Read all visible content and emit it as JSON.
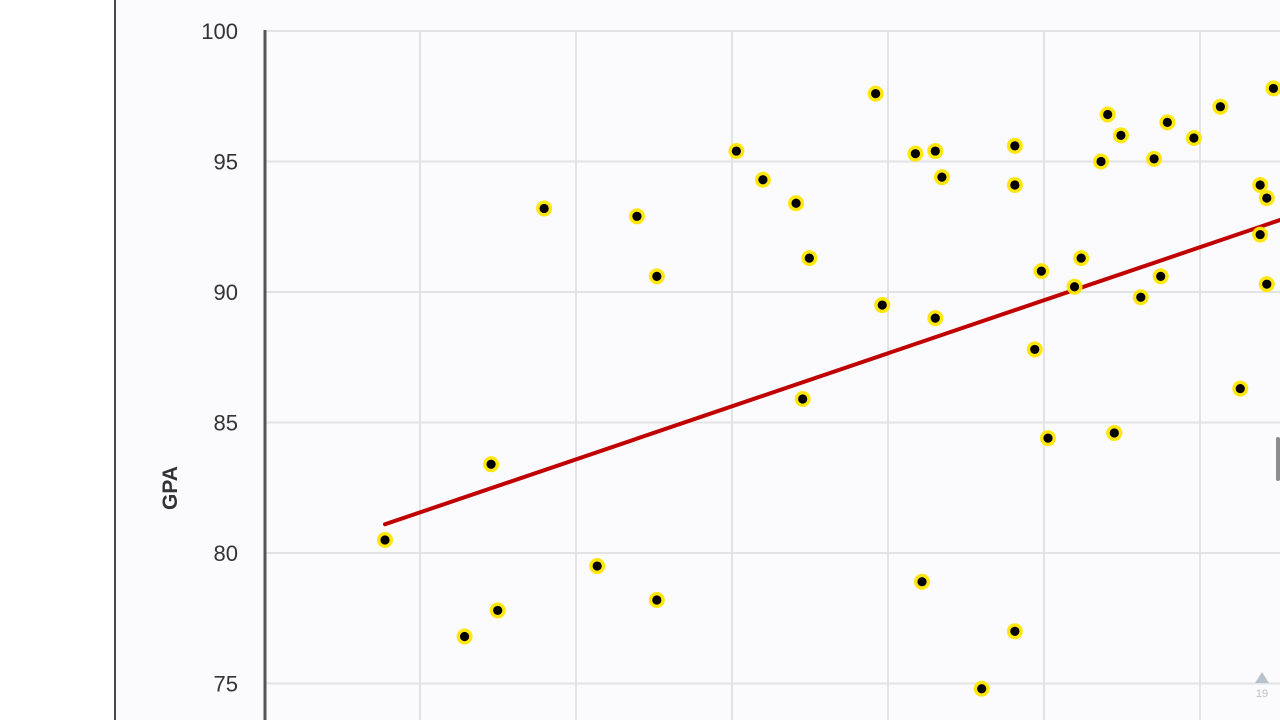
{
  "chart_data": {
    "type": "scatter",
    "title": "",
    "xlabel": "",
    "ylabel": "GPA",
    "ylim": [
      75,
      100
    ],
    "yticks": [
      100,
      95,
      90,
      85,
      80,
      75
    ],
    "grid": true,
    "legend": "none",
    "colors": {
      "point_fill": "#000000",
      "point_halo": "#ffe600",
      "trendline": "#c00000",
      "grid": "#e3e3e3",
      "axis": "#555555"
    },
    "series": [
      {
        "points": [
          [
            1.0,
            80.5
          ],
          [
            2.2,
            76.8
          ],
          [
            2.6,
            83.4
          ],
          [
            2.7,
            77.8
          ],
          [
            3.4,
            93.2
          ],
          [
            4.2,
            79.5
          ],
          [
            4.8,
            92.9
          ],
          [
            5.1,
            78.2
          ],
          [
            5.1,
            90.6
          ],
          [
            6.3,
            95.4
          ],
          [
            6.7,
            94.3
          ],
          [
            7.2,
            93.4
          ],
          [
            7.3,
            85.9
          ],
          [
            7.4,
            91.3
          ],
          [
            8.4,
            97.6
          ],
          [
            8.5,
            89.5
          ],
          [
            9.0,
            95.3
          ],
          [
            9.1,
            78.9
          ],
          [
            9.3,
            95.4
          ],
          [
            9.3,
            89.0
          ],
          [
            9.4,
            94.4
          ],
          [
            10.0,
            74.8
          ],
          [
            10.5,
            95.6
          ],
          [
            10.5,
            94.1
          ],
          [
            10.5,
            77.0
          ],
          [
            10.8,
            87.8
          ],
          [
            10.9,
            90.8
          ],
          [
            11.0,
            84.4
          ],
          [
            11.4,
            90.2
          ],
          [
            11.5,
            91.3
          ],
          [
            11.8,
            95.0
          ],
          [
            11.9,
            96.8
          ],
          [
            12.0,
            84.6
          ],
          [
            12.1,
            96.0
          ],
          [
            12.4,
            89.8
          ],
          [
            12.6,
            95.1
          ],
          [
            12.7,
            90.6
          ],
          [
            12.8,
            96.5
          ],
          [
            13.2,
            95.9
          ],
          [
            13.6,
            97.1
          ],
          [
            13.9,
            86.3
          ],
          [
            14.2,
            92.2
          ],
          [
            14.2,
            94.1
          ],
          [
            14.3,
            93.6
          ],
          [
            14.3,
            90.3
          ],
          [
            14.4,
            97.8
          ]
        ]
      }
    ],
    "trendline": {
      "from": [
        1.0,
        81.1
      ],
      "to": [
        14.2,
        92.5
      ]
    }
  },
  "slide": {
    "page_number": "19",
    "prev_icon": "triangle-up-icon"
  }
}
